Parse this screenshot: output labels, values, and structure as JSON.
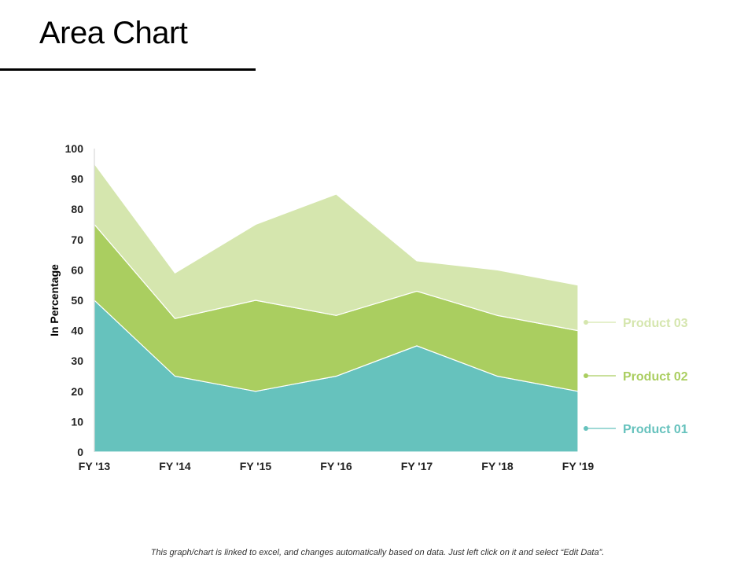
{
  "slide": {
    "title": "Area Chart",
    "footnote": "This graph/chart is linked to excel, and changes automatically based on data. Just left click on it and select “Edit Data”."
  },
  "chart_data": {
    "type": "area",
    "stacked": true,
    "categories": [
      "FY '13",
      "FY '14",
      "FY '15",
      "FY '16",
      "FY '17",
      "FY '18",
      "FY '19"
    ],
    "series": [
      {
        "name": "Product 01",
        "values": [
          50,
          25,
          20,
          25,
          35,
          25,
          20
        ],
        "color": "#66C2BD"
      },
      {
        "name": "Product 02",
        "values": [
          25,
          19,
          30,
          20,
          18,
          20,
          20
        ],
        "color": "#AACE60"
      },
      {
        "name": "Product 03",
        "values": [
          20,
          15,
          25,
          40,
          10,
          15,
          15
        ],
        "color": "#D5E6AE"
      }
    ],
    "ylabel": "In Percentage",
    "xlabel": "",
    "ylim": [
      0,
      100
    ],
    "yticks": [
      0,
      10,
      20,
      30,
      40,
      50,
      60,
      70,
      80,
      90,
      100
    ],
    "grid": false,
    "legend": "right"
  }
}
